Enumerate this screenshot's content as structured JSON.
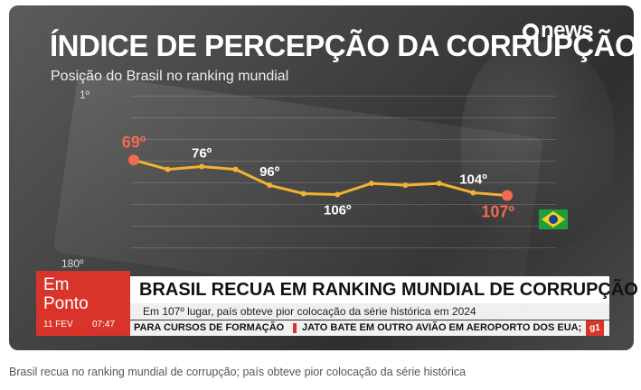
{
  "brand": {
    "logo_text": "news"
  },
  "broadcast": {
    "badge_line1": "Em",
    "badge_line2": "Ponto",
    "date": "11 FEV",
    "time": "07:47",
    "headline": "BRASIL RECUA EM RANKING MUNDIAL DE CORRUPÇÃO",
    "subheadline": "Em 107º lugar, país obteve pior colocação da série histórica em 2024",
    "ticker": [
      "PARA CURSOS DE FORMAÇÃO",
      "JATO BATE EM OUTRO AVIÃO EM AEROPORTO DOS EUA;"
    ],
    "ticker_logo": "g1"
  },
  "caption": "Brasil recua no ranking mundial de corrupção; país obteve pior colocação da série histórica",
  "colors": {
    "accent_red": "#d9342b",
    "line": "#f2b233",
    "point_highlight": "#f26b4f"
  },
  "chart_data": {
    "type": "line",
    "title": "ÍNDICE DE PERCEPÇÃO DA CORRUPÇÃO",
    "subtitle": "Posição do Brasil no ranking mundial",
    "y_axis_reversed": true,
    "ylim": [
      1,
      180
    ],
    "y_ticks": [
      "1º",
      "180º"
    ],
    "series": [
      {
        "values": [
          69,
          79,
          76,
          79,
          96,
          105,
          106,
          94,
          96,
          94,
          104,
          107
        ],
        "data_labels": {
          "0": "69º",
          "2": "76º",
          "4": "96º",
          "6": "106º",
          "10": "104º",
          "11": "107º"
        },
        "highlighted_points": [
          0,
          11
        ]
      }
    ],
    "grid": true,
    "legend": "none",
    "flag": "brazil"
  }
}
